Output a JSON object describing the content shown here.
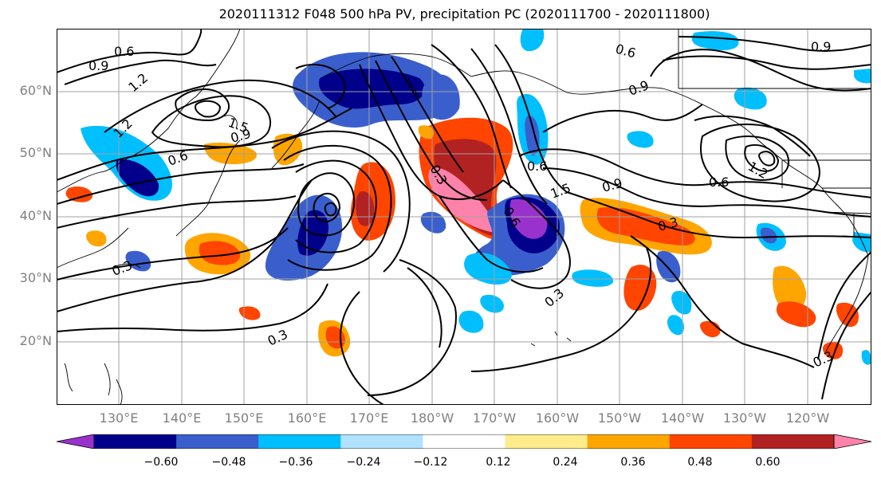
{
  "title": "2020111312 F048 500 hPa PV, precipitation PC (2020111700 - 2020111800)",
  "lat_labels": [
    "60°N",
    "50°N",
    "40°N",
    "30°N",
    "20°N"
  ],
  "lon_labels": [
    "130°E",
    "140°E",
    "150°E",
    "160°E",
    "170°E",
    "180°W",
    "170°W",
    "160°W",
    "150°W",
    "140°W",
    "130°W",
    "120°W"
  ],
  "colorbar": {
    "ticks": [
      "−0.60",
      "−0.48",
      "−0.36",
      "−0.24",
      "−0.12",
      "0.12",
      "0.24",
      "0.36",
      "0.48",
      "0.60"
    ],
    "colors": [
      "#9932cc",
      "#00008b",
      "#3a5fcd",
      "#00bfff",
      "#b0e2ff",
      "#ffffff",
      "#ffec8b",
      "#ffa500",
      "#ff4500",
      "#b22222",
      "#ff82ab"
    ]
  },
  "contour_labels": [
    {
      "text": "0.6"
    },
    {
      "text": "0.9"
    },
    {
      "text": "1.2"
    },
    {
      "text": "1.2"
    },
    {
      "text": "1.5"
    },
    {
      "text": "0.9"
    },
    {
      "text": "0.6"
    },
    {
      "text": "0.3"
    },
    {
      "text": "0.6"
    },
    {
      "text": "0.6"
    },
    {
      "text": "0.9"
    },
    {
      "text": "1.5"
    },
    {
      "text": "0.9"
    },
    {
      "text": "0.6"
    },
    {
      "text": "0.3"
    },
    {
      "text": "0.3"
    },
    {
      "text": "0.3"
    },
    {
      "text": "0.3"
    },
    {
      "text": "0.6"
    },
    {
      "text": "0.9"
    },
    {
      "text": "1.2"
    },
    {
      "text": "0.3"
    }
  ]
}
